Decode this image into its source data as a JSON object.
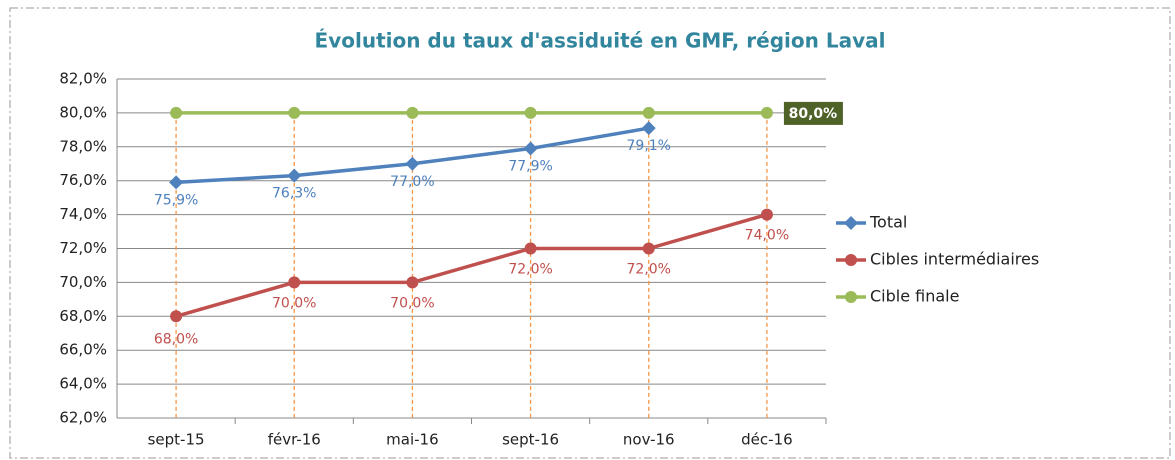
{
  "chart_data": {
    "type": "line",
    "title": "Évolution du taux d'assiduité en GMF, région Laval",
    "categories": [
      "sept-15",
      "févr-16",
      "mai-16",
      "sept-16",
      "nov-16",
      "déc-16"
    ],
    "series": [
      {
        "name": "Total",
        "color": "#4f81bd",
        "marker": "diamond",
        "values": [
          75.9,
          76.3,
          77.0,
          77.9,
          79.1,
          null
        ],
        "value_labels": [
          "75,9%",
          "76,3%",
          "77,0%",
          "77,9%",
          "79,1%",
          null
        ]
      },
      {
        "name": "Cibles intermédiaires",
        "color": "#c0504d",
        "marker": "circle",
        "values": [
          68,
          70,
          70,
          72,
          72,
          74
        ],
        "value_labels": [
          "68,0%",
          "70,0%",
          "70,0%",
          "72,0%",
          "72,0%",
          "74,0%"
        ]
      },
      {
        "name": "Cible finale",
        "color": "#9bbb59",
        "marker": "circle",
        "values": [
          80,
          80,
          80,
          80,
          80,
          80
        ],
        "value_labels": [
          null,
          null,
          null,
          null,
          null,
          "80,0%"
        ]
      }
    ],
    "ylim": [
      62,
      82
    ],
    "yticks": [
      {
        "value": 62,
        "label": "62,0%"
      },
      {
        "value": 64,
        "label": "64,0%"
      },
      {
        "value": 66,
        "label": "66,0%"
      },
      {
        "value": 68,
        "label": "68,0%"
      },
      {
        "value": 70,
        "label": "70,0%"
      },
      {
        "value": 72,
        "label": "72,0%"
      },
      {
        "value": 74,
        "label": "74,0%"
      },
      {
        "value": 76,
        "label": "76,0%"
      },
      {
        "value": 78,
        "label": "78,0%"
      },
      {
        "value": 80,
        "label": "80,0%"
      },
      {
        "value": 82,
        "label": "82,0%"
      }
    ],
    "grid": true,
    "legend": "right"
  }
}
